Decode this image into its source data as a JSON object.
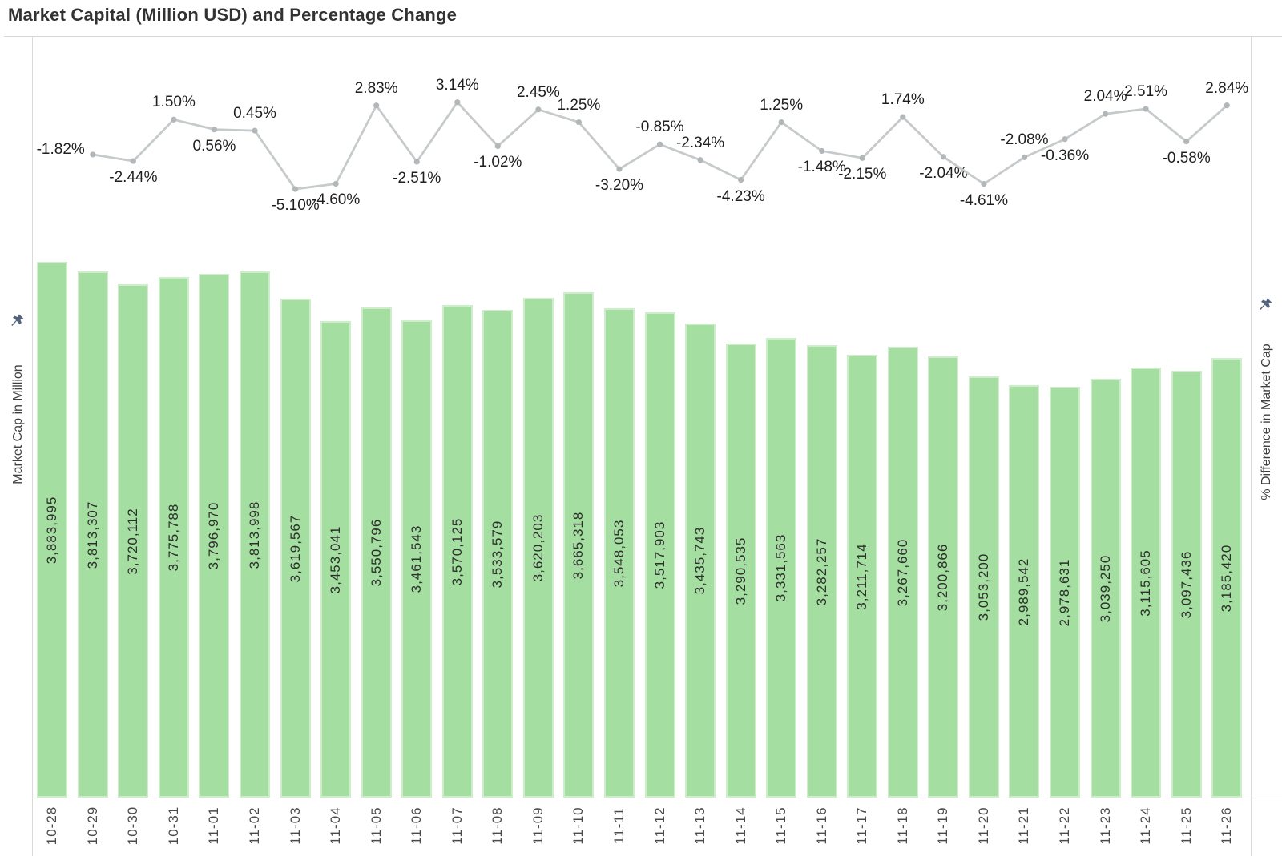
{
  "title": "Market Capital (Million USD) and Percentage Change",
  "axes": {
    "left": {
      "label": "Market Cap in Million"
    },
    "right": {
      "label": "% Difference in Market Cap"
    }
  },
  "colors": {
    "bar_fill": "#a4dea0",
    "line_stroke": "#c6cacb",
    "marker_fill": "#b2b7b9",
    "pct_label": "#1f1f1f",
    "value_label": "#2e2e2e",
    "date_label": "#4a4a4a",
    "border": "#d6d6d6",
    "pin": "#54647e",
    "title": "#323232"
  },
  "chart_data": {
    "type": "combo (bar + line, dual axis)",
    "title": "Market Capital (Million USD) and Percentage Change",
    "ylabel_left": "Market Cap in Million",
    "ylabel_right": "% Difference in Market Cap",
    "grid": false,
    "legend": false,
    "categories": [
      "10-28",
      "10-29",
      "10-30",
      "10-31",
      "11-01",
      "11-02",
      "11-03",
      "11-04",
      "11-05",
      "11-06",
      "11-07",
      "11-08",
      "11-09",
      "11-10",
      "11-11",
      "11-12",
      "11-13",
      "11-14",
      "11-15",
      "11-16",
      "11-17",
      "11-18",
      "11-19",
      "11-20",
      "11-21",
      "11-22",
      "11-23",
      "11-24",
      "11-25",
      "11-26"
    ],
    "series": [
      {
        "name": "Market Cap in Million",
        "type": "bar",
        "values": [
          3883995,
          3813307,
          3720112,
          3775788,
          3796970,
          3813998,
          3619567,
          3453041,
          3550796,
          3461543,
          3570125,
          3533579,
          3620203,
          3665318,
          3548053,
          3517903,
          3435743,
          3290535,
          3331563,
          3282257,
          3211714,
          3267660,
          3200866,
          3053200,
          2989542,
          2978631,
          3039250,
          3115605,
          3097436,
          3185420
        ]
      },
      {
        "name": "% Difference in Market Cap",
        "type": "line",
        "start_category": "10-29",
        "values": [
          -1.82,
          -2.44,
          1.5,
          0.56,
          0.45,
          -5.1,
          -4.6,
          2.83,
          -2.51,
          3.14,
          -1.02,
          2.45,
          1.25,
          -3.2,
          -0.85,
          -2.34,
          -4.23,
          1.25,
          -1.48,
          -2.15,
          1.74,
          -2.04,
          -4.61,
          -2.08,
          -0.36,
          2.04,
          2.51,
          -0.58,
          2.84
        ],
        "label_positions": [
          "left",
          "below",
          "above",
          "below",
          "above",
          "below",
          "below",
          "above",
          "below",
          "above",
          "below",
          "above",
          "above",
          "below",
          "above",
          "above",
          "below",
          "above",
          "below",
          "below",
          "above",
          "below",
          "below",
          "above",
          "below",
          "above",
          "above",
          "below",
          "above"
        ]
      }
    ]
  }
}
